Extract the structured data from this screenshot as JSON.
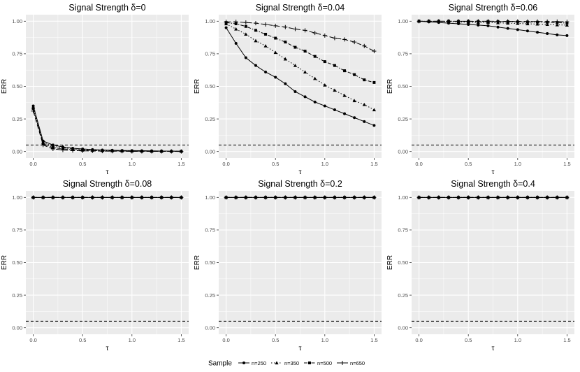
{
  "chart_data": {
    "type": "line",
    "x": [
      0,
      0.1,
      0.2,
      0.3,
      0.4,
      0.5,
      0.6,
      0.7,
      0.8,
      0.9,
      1.0,
      1.1,
      1.2,
      1.3,
      1.4,
      1.5
    ],
    "xlabel": "τ",
    "ylabel": "ERR",
    "xlim": [
      -0.075,
      1.575
    ],
    "ylim": [
      -0.05,
      1.05
    ],
    "x_ticks": [
      0,
      0.5,
      1.0,
      1.5
    ],
    "x_tick_labels": [
      "0.0",
      "0.5",
      "1.0",
      "1.5"
    ],
    "y_ticks": [
      0,
      0.25,
      0.5,
      0.75,
      1.0
    ],
    "y_tick_labels": [
      "0.00",
      "0.25",
      "0.50",
      "0.75",
      "1.00"
    ],
    "reference_line": 0.05,
    "legend": {
      "title": "Sample",
      "position": "bottom",
      "entries": [
        "n=250",
        "n=350",
        "n=500",
        "n=650"
      ]
    },
    "panels": [
      {
        "title": "Signal Strength δ=0",
        "series": [
          {
            "name": "n=250",
            "values": [
              0.35,
              0.08,
              0.05,
              0.035,
              0.025,
              0.02,
              0.015,
              0.012,
              0.01,
              0.008,
              0.007,
              0.006,
              0.005,
              0.004,
              0.003,
              0.003
            ]
          },
          {
            "name": "n=350",
            "values": [
              0.34,
              0.07,
              0.04,
              0.03,
              0.02,
              0.015,
              0.012,
              0.01,
              0.008,
              0.006,
              0.005,
              0.004,
              0.003,
              0.003,
              0.002,
              0.002
            ]
          },
          {
            "name": "n=500",
            "values": [
              0.33,
              0.06,
              0.03,
              0.02,
              0.015,
              0.01,
              0.008,
              0.006,
              0.005,
              0.004,
              0.003,
              0.002,
              0.002,
              0.001,
              0.001,
              0.001
            ]
          },
          {
            "name": "n=650",
            "values": [
              0.31,
              0.05,
              0.02,
              0.012,
              0.008,
              0.005,
              0.004,
              0.003,
              0.002,
              0.002,
              0.001,
              0.001,
              0.001,
              0.001,
              0.001,
              0.0
            ]
          }
        ]
      },
      {
        "title": "Signal Strength δ=0.04",
        "series": [
          {
            "name": "n=250",
            "values": [
              0.95,
              0.83,
              0.72,
              0.66,
              0.61,
              0.57,
              0.52,
              0.46,
              0.42,
              0.38,
              0.35,
              0.32,
              0.29,
              0.26,
              0.23,
              0.2
            ]
          },
          {
            "name": "n=350",
            "values": [
              0.98,
              0.94,
              0.9,
              0.85,
              0.81,
              0.76,
              0.71,
              0.66,
              0.61,
              0.56,
              0.51,
              0.47,
              0.43,
              0.39,
              0.36,
              0.32
            ]
          },
          {
            "name": "n=500",
            "values": [
              0.99,
              0.98,
              0.96,
              0.93,
              0.9,
              0.87,
              0.84,
              0.8,
              0.77,
              0.73,
              0.69,
              0.66,
              0.62,
              0.59,
              0.55,
              0.53
            ]
          },
          {
            "name": "n=650",
            "values": [
              0.995,
              0.995,
              0.99,
              0.985,
              0.975,
              0.965,
              0.955,
              0.94,
              0.93,
              0.91,
              0.89,
              0.87,
              0.86,
              0.84,
              0.81,
              0.77
            ]
          }
        ]
      },
      {
        "title": "Signal Strength δ=0.06",
        "series": [
          {
            "name": "n=250",
            "values": [
              1.0,
              0.995,
              0.99,
              0.985,
              0.98,
              0.975,
              0.97,
              0.965,
              0.955,
              0.945,
              0.935,
              0.925,
              0.915,
              0.905,
              0.895,
              0.89
            ]
          },
          {
            "name": "n=350",
            "values": [
              1.0,
              1.0,
              0.998,
              0.997,
              0.995,
              0.993,
              0.99,
              0.99,
              0.988,
              0.985,
              0.983,
              0.98,
              0.978,
              0.975,
              0.972,
              0.97
            ]
          },
          {
            "name": "n=500",
            "values": [
              1.0,
              1.0,
              1.0,
              1.0,
              0.999,
              0.999,
              0.998,
              0.998,
              0.997,
              0.996,
              0.995,
              0.994,
              0.993,
              0.992,
              0.99,
              0.985
            ]
          },
          {
            "name": "n=650",
            "values": [
              1.0,
              1.0,
              1.0,
              1.0,
              1.0,
              1.0,
              1.0,
              1.0,
              0.999,
              0.999,
              0.999,
              0.998,
              0.998,
              0.997,
              0.997,
              0.996
            ]
          }
        ]
      },
      {
        "title": "Signal Strength δ=0.08",
        "series": [
          {
            "name": "n=250",
            "values": [
              1.0,
              1.0,
              1.0,
              1.0,
              1.0,
              1.0,
              1.0,
              1.0,
              1.0,
              1.0,
              1.0,
              1.0,
              1.0,
              1.0,
              1.0,
              1.0
            ]
          },
          {
            "name": "n=350",
            "values": [
              1.0,
              1.0,
              1.0,
              1.0,
              1.0,
              1.0,
              1.0,
              1.0,
              1.0,
              1.0,
              1.0,
              1.0,
              1.0,
              1.0,
              1.0,
              1.0
            ]
          },
          {
            "name": "n=500",
            "values": [
              1.0,
              1.0,
              1.0,
              1.0,
              1.0,
              1.0,
              1.0,
              1.0,
              1.0,
              1.0,
              1.0,
              1.0,
              1.0,
              1.0,
              1.0,
              1.0
            ]
          },
          {
            "name": "n=650",
            "values": [
              1.0,
              1.0,
              1.0,
              1.0,
              1.0,
              1.0,
              1.0,
              1.0,
              1.0,
              1.0,
              1.0,
              1.0,
              1.0,
              1.0,
              1.0,
              1.0
            ]
          }
        ]
      },
      {
        "title": "Signal Strength δ=0.2",
        "series": [
          {
            "name": "n=250",
            "values": [
              1.0,
              1.0,
              1.0,
              1.0,
              1.0,
              1.0,
              1.0,
              1.0,
              1.0,
              1.0,
              1.0,
              1.0,
              1.0,
              1.0,
              1.0,
              1.0
            ]
          },
          {
            "name": "n=350",
            "values": [
              1.0,
              1.0,
              1.0,
              1.0,
              1.0,
              1.0,
              1.0,
              1.0,
              1.0,
              1.0,
              1.0,
              1.0,
              1.0,
              1.0,
              1.0,
              1.0
            ]
          },
          {
            "name": "n=500",
            "values": [
              1.0,
              1.0,
              1.0,
              1.0,
              1.0,
              1.0,
              1.0,
              1.0,
              1.0,
              1.0,
              1.0,
              1.0,
              1.0,
              1.0,
              1.0,
              1.0
            ]
          },
          {
            "name": "n=650",
            "values": [
              1.0,
              1.0,
              1.0,
              1.0,
              1.0,
              1.0,
              1.0,
              1.0,
              1.0,
              1.0,
              1.0,
              1.0,
              1.0,
              1.0,
              1.0,
              1.0
            ]
          }
        ]
      },
      {
        "title": "Signal Strength δ=0.4",
        "series": [
          {
            "name": "n=250",
            "values": [
              1.0,
              1.0,
              1.0,
              1.0,
              1.0,
              1.0,
              1.0,
              1.0,
              1.0,
              1.0,
              1.0,
              1.0,
              1.0,
              1.0,
              1.0,
              1.0
            ]
          },
          {
            "name": "n=350",
            "values": [
              1.0,
              1.0,
              1.0,
              1.0,
              1.0,
              1.0,
              1.0,
              1.0,
              1.0,
              1.0,
              1.0,
              1.0,
              1.0,
              1.0,
              1.0,
              1.0
            ]
          },
          {
            "name": "n=500",
            "values": [
              1.0,
              1.0,
              1.0,
              1.0,
              1.0,
              1.0,
              1.0,
              1.0,
              1.0,
              1.0,
              1.0,
              1.0,
              1.0,
              1.0,
              1.0,
              1.0
            ]
          },
          {
            "name": "n=650",
            "values": [
              1.0,
              1.0,
              1.0,
              1.0,
              1.0,
              1.0,
              1.0,
              1.0,
              1.0,
              1.0,
              1.0,
              1.0,
              1.0,
              1.0,
              1.0,
              1.0
            ]
          }
        ]
      }
    ]
  }
}
